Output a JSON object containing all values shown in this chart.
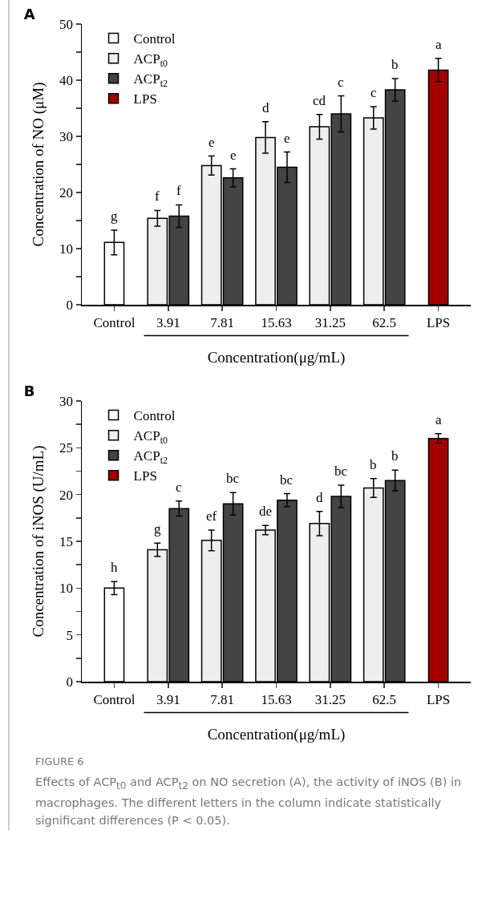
{
  "chart_data": [
    {
      "type": "bar",
      "title": "A",
      "xlabel": "Concentration(μg/mL)",
      "ylabel": "Concentration of NO (μM)",
      "categories": [
        "Control",
        "3.91",
        "7.81",
        "15.63",
        "31.25",
        "62.5",
        "LPS"
      ],
      "series": [
        {
          "name": "Control",
          "color": "#ffffff",
          "values": [
            11.1,
            null,
            null,
            null,
            null,
            null,
            null
          ],
          "errors": [
            2.2,
            null,
            null,
            null,
            null,
            null,
            null
          ],
          "value_labels": [
            "g",
            null,
            null,
            null,
            null,
            null,
            null
          ]
        },
        {
          "name": "ACP$_{t0}$",
          "color": "#eeeeee",
          "values": [
            null,
            15.4,
            24.8,
            29.8,
            31.7,
            33.3,
            null
          ],
          "errors": [
            null,
            1.4,
            1.7,
            2.8,
            2.2,
            2.0,
            null
          ],
          "value_labels": [
            null,
            "f",
            "e",
            "d",
            "cd",
            "c",
            null
          ]
        },
        {
          "name": "ACP$_{t2}$",
          "color": "#444444",
          "values": [
            null,
            15.8,
            22.6,
            24.5,
            34.0,
            38.3,
            null
          ],
          "errors": [
            null,
            2.0,
            1.6,
            2.7,
            3.2,
            2.0,
            null
          ],
          "value_labels": [
            null,
            "f",
            "e",
            "e",
            "c",
            "b",
            null
          ]
        },
        {
          "name": "LPS",
          "color": "#a50000",
          "values": [
            null,
            null,
            null,
            null,
            null,
            null,
            41.8
          ],
          "errors": [
            null,
            null,
            null,
            null,
            null,
            null,
            2.1
          ],
          "value_labels": [
            null,
            null,
            null,
            null,
            null,
            null,
            "a"
          ]
        }
      ],
      "ylim": [
        0,
        50
      ],
      "yticks": [
        0,
        {
          "value": 5,
          "label": null
        },
        10,
        {
          "value": 15,
          "label": null
        },
        20,
        {
          "value": 25,
          "label": null
        },
        30,
        {
          "value": 35,
          "label": null
        },
        40,
        {
          "value": 45,
          "label": null
        },
        50
      ],
      "grid": false,
      "legend": "top left"
    },
    {
      "type": "bar",
      "title": "B",
      "xlabel": "Concentration(μg/mL)",
      "ylabel": "Concentration of iNOS (U/mL)",
      "categories": [
        "Control",
        "3.91",
        "7.81",
        "15.63",
        "31.25",
        "62.5",
        "LPS"
      ],
      "series": [
        {
          "name": "Control",
          "color": "#ffffff",
          "values": [
            10.0,
            null,
            null,
            null,
            null,
            null,
            null
          ],
          "errors": [
            0.7,
            null,
            null,
            null,
            null,
            null,
            null
          ],
          "value_labels": [
            "h",
            null,
            null,
            null,
            null,
            null,
            null
          ]
        },
        {
          "name": "ACP$_{t0}$",
          "color": "#eeeeee",
          "values": [
            null,
            14.1,
            15.1,
            16.2,
            16.9,
            20.7,
            null
          ],
          "errors": [
            null,
            0.7,
            1.1,
            0.5,
            1.3,
            1.0,
            null
          ],
          "value_labels": [
            null,
            "g",
            "ef",
            "de",
            "d",
            "b",
            null
          ]
        },
        {
          "name": "ACP$_{t2}$",
          "color": "#444444",
          "values": [
            null,
            18.5,
            19.0,
            19.4,
            19.8,
            21.5,
            null
          ],
          "errors": [
            null,
            0.8,
            1.2,
            0.7,
            1.2,
            1.1,
            null
          ],
          "value_labels": [
            null,
            "c",
            "bc",
            "bc",
            "bc",
            "b",
            null
          ]
        },
        {
          "name": "LPS",
          "color": "#a50000",
          "values": [
            null,
            null,
            null,
            null,
            null,
            null,
            26.0
          ],
          "errors": [
            null,
            null,
            null,
            null,
            null,
            null,
            0.5
          ],
          "value_labels": [
            null,
            null,
            null,
            null,
            null,
            null,
            "a"
          ]
        }
      ],
      "ylim": [
        0,
        30
      ],
      "yticks": [
        0,
        {
          "value": 2.5,
          "label": null
        },
        5,
        {
          "value": 7.5,
          "label": null
        },
        10,
        {
          "value": 12.5,
          "label": null
        },
        15,
        {
          "value": 17.5,
          "label": null
        },
        20,
        {
          "value": 22.5,
          "label": null
        },
        25,
        {
          "value": 27.5,
          "label": null
        },
        30
      ],
      "grid": false,
      "legend": "top left",
      "annotations": [
        "FIGURE 6",
        "Effects of ACP$_{t0}$ and ACP$_{t2}$ on NO secretion (A), the activity of iNOS (B) in macrophages. The different letters in the column indicate statistically significant differences (P < 0.05)."
      ]
    }
  ]
}
